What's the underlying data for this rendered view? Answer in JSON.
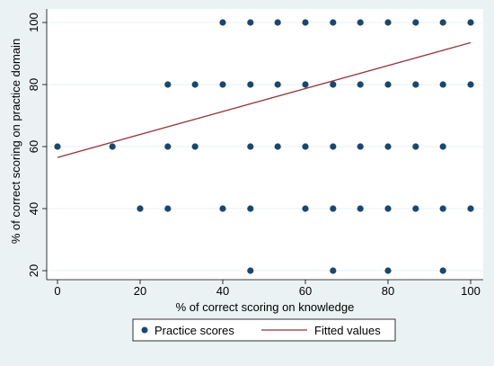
{
  "chart_data": {
    "type": "scatter",
    "xlabel": "% of correct scoring on knowledge",
    "ylabel": "% of correct scoring on practice domain",
    "xlim": [
      0,
      100
    ],
    "ylim": [
      20,
      100
    ],
    "xticks": [
      0,
      20,
      40,
      60,
      80,
      100
    ],
    "yticks": [
      20,
      40,
      60,
      80,
      100
    ],
    "grid": "horizontal",
    "legend_position": "bottom",
    "colors": {
      "points": "#1a476f",
      "fit_line": "#90353b",
      "background": "#eaf2f3",
      "plot_area": "#ffffff"
    },
    "series": [
      {
        "name": "Practice scores",
        "kind": "scatter",
        "points": [
          [
            40,
            100
          ],
          [
            46.7,
            100
          ],
          [
            53.3,
            100
          ],
          [
            60,
            100
          ],
          [
            66.7,
            100
          ],
          [
            73.3,
            100
          ],
          [
            80,
            100
          ],
          [
            86.7,
            100
          ],
          [
            93.3,
            100
          ],
          [
            100,
            100
          ],
          [
            26.7,
            80
          ],
          [
            33.3,
            80
          ],
          [
            40,
            80
          ],
          [
            46.7,
            80
          ],
          [
            53.3,
            80
          ],
          [
            60,
            80
          ],
          [
            66.7,
            80
          ],
          [
            73.3,
            80
          ],
          [
            80,
            80
          ],
          [
            86.7,
            80
          ],
          [
            93.3,
            80
          ],
          [
            100,
            80
          ],
          [
            0,
            60
          ],
          [
            13.3,
            60
          ],
          [
            26.7,
            60
          ],
          [
            33.3,
            60
          ],
          [
            46.7,
            60
          ],
          [
            53.3,
            60
          ],
          [
            60,
            60
          ],
          [
            66.7,
            60
          ],
          [
            73.3,
            60
          ],
          [
            80,
            60
          ],
          [
            86.7,
            60
          ],
          [
            93.3,
            60
          ],
          [
            20,
            40
          ],
          [
            26.7,
            40
          ],
          [
            40,
            40
          ],
          [
            46.7,
            40
          ],
          [
            60,
            40
          ],
          [
            66.7,
            40
          ],
          [
            73.3,
            40
          ],
          [
            80,
            40
          ],
          [
            86.7,
            40
          ],
          [
            93.3,
            40
          ],
          [
            100,
            40
          ],
          [
            46.7,
            20
          ],
          [
            66.7,
            20
          ],
          [
            80,
            20
          ],
          [
            93.3,
            20
          ]
        ]
      },
      {
        "name": "Fitted values",
        "kind": "line",
        "points": [
          [
            0,
            56.5
          ],
          [
            100,
            93.5
          ]
        ]
      }
    ]
  }
}
